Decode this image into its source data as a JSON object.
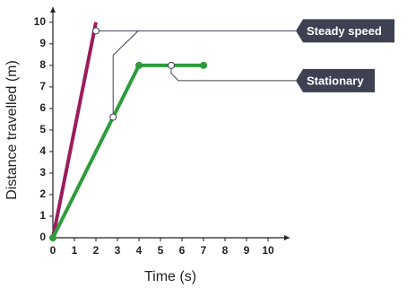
{
  "chart_data": {
    "type": "line",
    "x_label": "Time (s)",
    "y_label": "Distance travelled (m)",
    "xlim": [
      0,
      11
    ],
    "ylim": [
      0,
      10.7
    ],
    "xticks": [
      0,
      1,
      2,
      3,
      4,
      5,
      6,
      7,
      8,
      9,
      10
    ],
    "yticks": [
      0,
      1,
      2,
      3,
      4,
      5,
      6,
      7,
      8,
      9,
      10
    ],
    "grid": false,
    "series": [
      {
        "color": "#9b1d5c",
        "x": [
          0,
          2
        ],
        "values": [
          0,
          10
        ],
        "markers": false
      },
      {
        "color": "#2e9c3c",
        "x": [
          0,
          4,
          7
        ],
        "values": [
          0,
          8,
          8
        ],
        "markers": true
      }
    ],
    "annotations": [
      {
        "text": "Steady speed",
        "x": [
          2,
          2.8
        ],
        "y": [
          9.6,
          5.6
        ]
      },
      {
        "text": "Stationary",
        "x": [
          5.5
        ],
        "y": [
          8
        ]
      }
    ]
  }
}
